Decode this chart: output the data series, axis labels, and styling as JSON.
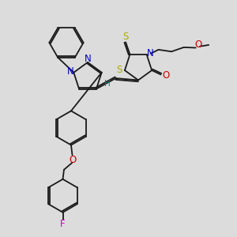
{
  "bg_color": "#dcdcdc",
  "bond_color": "#1a1a1a",
  "atom_colors": {
    "N": "#0000cc",
    "O": "#cc0000",
    "S": "#aaaa00",
    "F": "#cc00cc",
    "H": "#008080",
    "C": "#1a1a1a"
  },
  "lw": 1.3,
  "fs": 8.5
}
